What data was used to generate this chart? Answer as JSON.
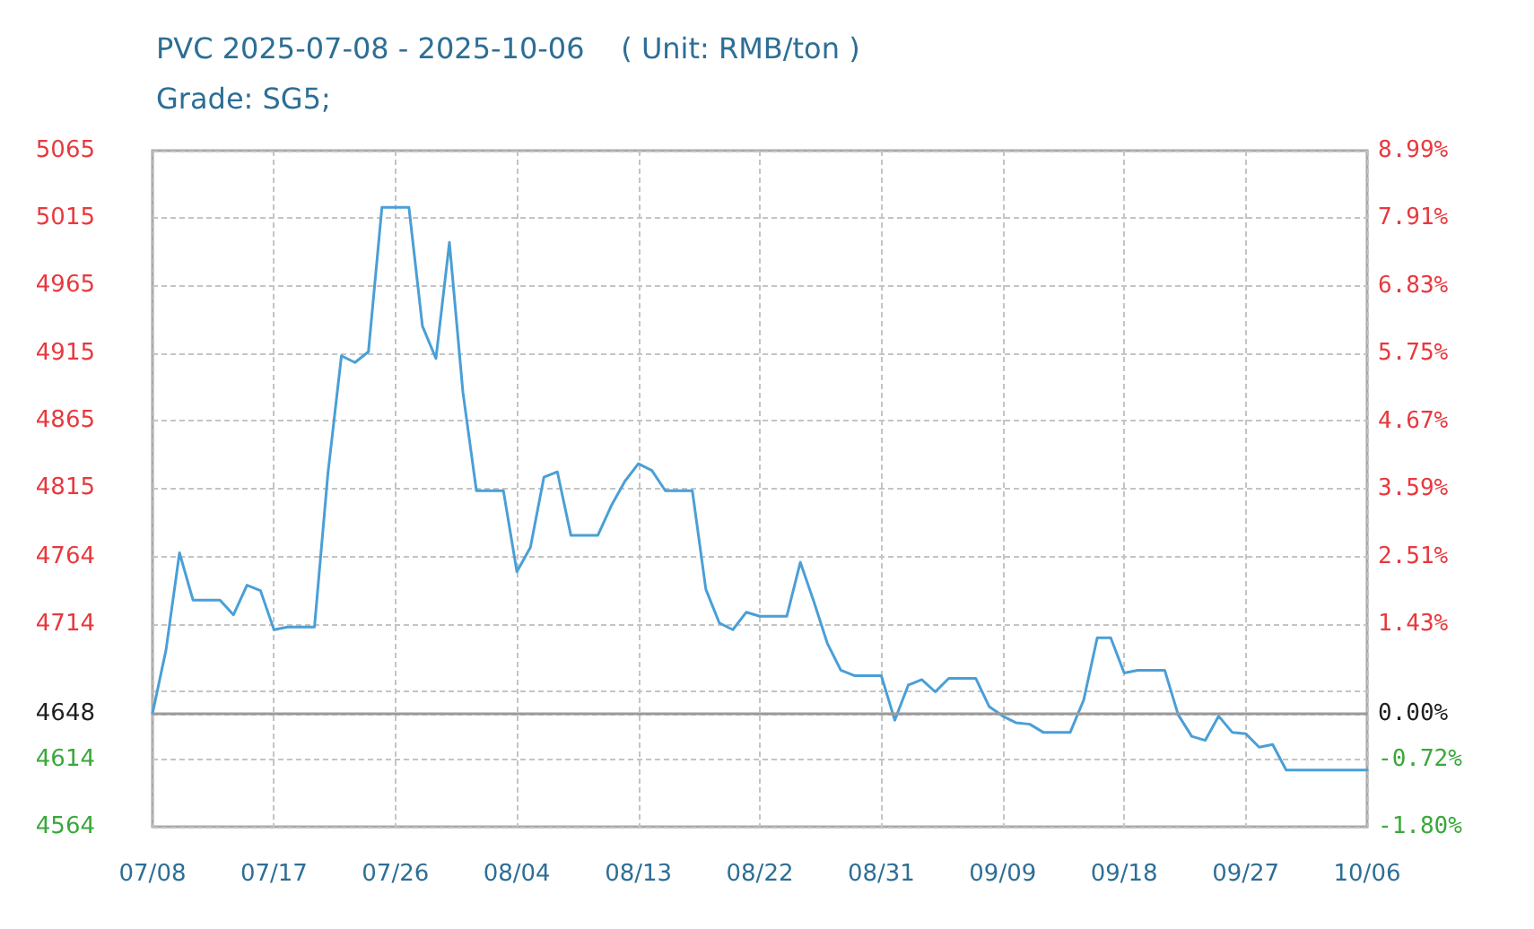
{
  "chart_data": {
    "type": "line",
    "title": "PVC 2025-07-08 - 2025-10-06    ( Unit: RMB/ton )",
    "subtitle": "Grade: SG5;",
    "x": [
      "2025-07-08",
      "2025-07-09",
      "2025-07-10",
      "2025-07-11",
      "2025-07-12",
      "2025-07-13",
      "2025-07-14",
      "2025-07-15",
      "2025-07-16",
      "2025-07-17",
      "2025-07-18",
      "2025-07-19",
      "2025-07-20",
      "2025-07-21",
      "2025-07-22",
      "2025-07-23",
      "2025-07-24",
      "2025-07-25",
      "2025-07-26",
      "2025-07-27",
      "2025-07-28",
      "2025-07-29",
      "2025-07-30",
      "2025-07-31",
      "2025-08-01",
      "2025-08-02",
      "2025-08-03",
      "2025-08-04",
      "2025-08-05",
      "2025-08-06",
      "2025-08-07",
      "2025-08-08",
      "2025-08-09",
      "2025-08-10",
      "2025-08-11",
      "2025-08-12",
      "2025-08-13",
      "2025-08-14",
      "2025-08-15",
      "2025-08-16",
      "2025-08-17",
      "2025-08-18",
      "2025-08-19",
      "2025-08-20",
      "2025-08-21",
      "2025-08-22",
      "2025-08-23",
      "2025-08-24",
      "2025-08-25",
      "2025-08-26",
      "2025-08-27",
      "2025-08-28",
      "2025-08-29",
      "2025-08-30",
      "2025-08-31",
      "2025-09-01",
      "2025-09-02",
      "2025-09-03",
      "2025-09-04",
      "2025-09-05",
      "2025-09-06",
      "2025-09-07",
      "2025-09-08",
      "2025-09-09",
      "2025-09-10",
      "2025-09-11",
      "2025-09-12",
      "2025-09-13",
      "2025-09-14",
      "2025-09-15",
      "2025-09-16",
      "2025-09-17",
      "2025-09-18",
      "2025-09-19",
      "2025-09-20",
      "2025-09-21",
      "2025-09-22",
      "2025-09-23",
      "2025-09-24",
      "2025-09-25",
      "2025-09-26",
      "2025-09-27",
      "2025-09-28",
      "2025-09-29",
      "2025-09-30",
      "2025-10-01",
      "2025-10-02",
      "2025-10-03",
      "2025-10-04",
      "2025-10-05",
      "2025-10-06"
    ],
    "values": [
      4648,
      4695,
      4767,
      4732,
      4732,
      4732,
      4721,
      4743,
      4739,
      4710,
      4712,
      4712,
      4712,
      4826,
      4913,
      4908,
      4916,
      5023,
      5023,
      5023,
      4935,
      4911,
      4997,
      4886,
      4813,
      4813,
      4813,
      4753,
      4771,
      4823,
      4827,
      4780,
      4780,
      4780,
      4802,
      4820,
      4833,
      4828,
      4813,
      4813,
      4813,
      4740,
      4715,
      4710,
      4723,
      4720,
      4720,
      4720,
      4760,
      4731,
      4700,
      4680,
      4676,
      4676,
      4676,
      4643,
      4669,
      4673,
      4664,
      4674,
      4674,
      4674,
      4653,
      4646,
      4641,
      4640,
      4634,
      4634,
      4634,
      4658,
      4704,
      4704,
      4678,
      4680,
      4680,
      4680,
      4647,
      4631,
      4628,
      4646,
      4634,
      4633,
      4623,
      4625,
      4606,
      4606,
      4606,
      4606,
      4606,
      4606,
      4606
    ],
    "color": "#4a9fd6",
    "xlim": [
      "2025-07-08",
      "2025-10-06"
    ],
    "xticks": [
      {
        "value": "2025-07-08",
        "label": "07/08"
      },
      {
        "value": "2025-07-17",
        "label": "07/17"
      },
      {
        "value": "2025-07-26",
        "label": "07/26"
      },
      {
        "value": "2025-08-04",
        "label": "08/04"
      },
      {
        "value": "2025-08-13",
        "label": "08/13"
      },
      {
        "value": "2025-08-22",
        "label": "08/22"
      },
      {
        "value": "2025-08-31",
        "label": "08/31"
      },
      {
        "value": "2025-09-09",
        "label": "09/09"
      },
      {
        "value": "2025-09-18",
        "label": "09/18"
      },
      {
        "value": "2025-09-27",
        "label": "09/27"
      },
      {
        "value": "2025-10-06",
        "label": "10/06"
      }
    ],
    "ylim": [
      4564,
      5065
    ],
    "yticks": [
      4564,
      4614,
      4648,
      {
        "value": 4665,
        "label": null
      },
      4714,
      4764,
      4815,
      4865,
      4915,
      4965,
      5015,
      5065
    ],
    "y2lim": [
      -1.8,
      8.99
    ],
    "y2ticks": [
      {
        "value": -1.8,
        "label": "-1.80%"
      },
      {
        "value": -0.72,
        "label": "-0.72%"
      },
      {
        "value": 0,
        "label": "0.00%"
      },
      {
        "value": 1.43,
        "label": "1.43%"
      },
      {
        "value": 2.51,
        "label": "2.51%"
      },
      {
        "value": 3.59,
        "label": "3.59%"
      },
      {
        "value": 4.67,
        "label": "4.67%"
      },
      {
        "value": 5.75,
        "label": "5.75%"
      },
      {
        "value": 6.83,
        "label": "6.83%"
      },
      {
        "value": 7.91,
        "label": "7.91%"
      },
      {
        "value": 8.99,
        "label": "8.99%"
      }
    ],
    "ref_lines": [
      {
        "axis": "y",
        "value": 4648,
        "color": "#9a9a9a"
      }
    ],
    "grid": true
  }
}
